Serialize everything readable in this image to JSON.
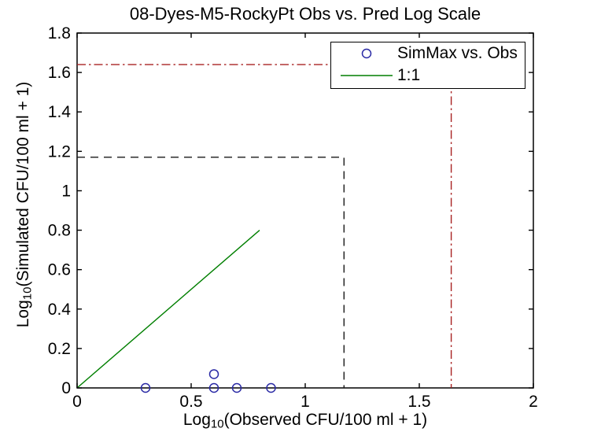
{
  "title": "08-Dyes-M5-RockyPt Obs vs. Pred Log Scale",
  "axes": {
    "xlabel": {
      "pre": "Log",
      "sub": "10",
      "post": "(Observed CFU/100 ml + 1)"
    },
    "ylabel": {
      "pre": "Log",
      "sub": "10",
      "post": "(Simulated CFU/100 ml + 1)"
    }
  },
  "colors": {
    "marker_blue": "#2a2aa5",
    "line_green": "#007f00",
    "dashdot_red": "#a82222",
    "dashed_black": "#1a1a1a",
    "axis_black": "#000000",
    "background": "#ffffff"
  },
  "chart_data": {
    "type": "scatter",
    "title": "08-Dyes-M5-RockyPt Obs vs. Pred Log Scale",
    "xlabel": "Log10(Observed CFU/100 ml + 1)",
    "ylabel": "Log10(Simulated CFU/100 ml + 1)",
    "xlim": [
      0,
      2
    ],
    "ylim": [
      0,
      1.8
    ],
    "grid": false,
    "xticks": {
      "values": [
        0,
        0.5,
        1,
        1.5,
        2
      ],
      "labels": [
        "0",
        "0.5",
        "1",
        "1.5",
        "2"
      ]
    },
    "yticks": {
      "values": [
        0,
        0.2,
        0.4,
        0.6,
        0.8,
        1,
        1.2,
        1.4,
        1.6,
        1.8
      ],
      "labels": [
        "0",
        "0.2",
        "0.4",
        "0.6",
        "0.8",
        "1",
        "1.2",
        "1.4",
        "1.6",
        "1.8"
      ]
    },
    "series": [
      {
        "name": "SimMax vs. Obs",
        "kind": "scatter",
        "marker": "circle",
        "color": "#2a2aa5",
        "points": [
          [
            0.3,
            0
          ],
          [
            0.6,
            0
          ],
          [
            0.6,
            0.07
          ],
          [
            0.7,
            0
          ],
          [
            0.85,
            0
          ]
        ]
      },
      {
        "name": "1:1",
        "kind": "line",
        "color": "#007f00",
        "points": [
          [
            0,
            0
          ],
          [
            0.8,
            0.8
          ]
        ]
      }
    ],
    "reference_lines": [
      {
        "name": "sim-obs-max-dashed",
        "style": "dashed",
        "color": "#1a1a1a",
        "value": 1.17,
        "points": [
          [
            0,
            1.17
          ],
          [
            1.17,
            1.17
          ],
          [
            1.17,
            0
          ]
        ]
      },
      {
        "name": "upper-limit-dashdot",
        "style": "dashdot",
        "color": "#a82222",
        "value": 1.64,
        "points": [
          [
            0,
            1.64
          ],
          [
            1.64,
            1.64
          ],
          [
            1.64,
            0
          ]
        ]
      }
    ],
    "legend": {
      "position": "top-right",
      "entries": [
        {
          "label": "SimMax vs. Obs",
          "marker": "circle",
          "color": "#2a2aa5"
        },
        {
          "label": "1:1",
          "marker": "line",
          "color": "#007f00"
        }
      ]
    }
  }
}
